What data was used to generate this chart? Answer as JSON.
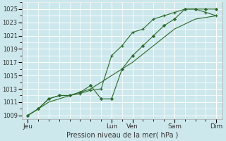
{
  "background_color": "#cde8ec",
  "grid_color": "#ffffff",
  "line_color": "#2d6a2d",
  "xlabel": "Pression niveau de la mer( hPa )",
  "ylim": [
    1008.5,
    1026
  ],
  "yticks": [
    1009,
    1011,
    1013,
    1015,
    1017,
    1019,
    1021,
    1023,
    1025
  ],
  "day_labels": [
    "Jeu",
    "Lun",
    "Ven",
    "Sam",
    "Dim"
  ],
  "day_positions": [
    0,
    56,
    70,
    98,
    126
  ],
  "xlim": [
    -4,
    130
  ],
  "series1_x": [
    0,
    7,
    14,
    21,
    28,
    35,
    42,
    49,
    56,
    63,
    70,
    77,
    84,
    91,
    98,
    105,
    112,
    119,
    126
  ],
  "series1_y": [
    1009.0,
    1010.0,
    1011.5,
    1012.0,
    1012.0,
    1012.3,
    1012.8,
    1013.0,
    1018.0,
    1019.5,
    1021.5,
    1022.0,
    1023.5,
    1024.0,
    1024.5,
    1025.0,
    1025.0,
    1024.5,
    1024.0
  ],
  "series2_x": [
    0,
    7,
    14,
    21,
    28,
    35,
    42,
    49,
    56,
    63,
    70,
    77,
    84,
    91,
    98,
    105,
    112,
    119,
    126
  ],
  "series2_y": [
    1009.0,
    1010.0,
    1011.5,
    1012.0,
    1012.0,
    1012.5,
    1013.5,
    1011.5,
    1011.5,
    1016.0,
    1018.0,
    1019.5,
    1021.0,
    1022.5,
    1023.5,
    1025.0,
    1025.0,
    1025.0,
    1025.0
  ],
  "series3_x": [
    0,
    14,
    28,
    42,
    56,
    70,
    84,
    98,
    112,
    126
  ],
  "series3_y": [
    1009.0,
    1011.0,
    1012.0,
    1013.0,
    1015.0,
    1017.0,
    1019.5,
    1022.0,
    1023.5,
    1024.0
  ]
}
